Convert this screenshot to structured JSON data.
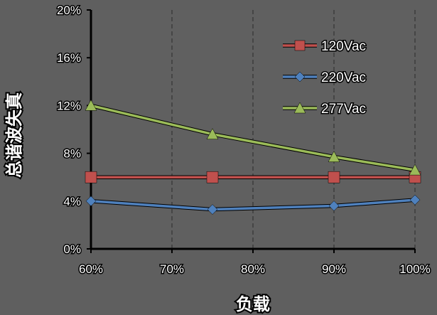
{
  "chart_data": {
    "type": "line",
    "title": "",
    "xlabel": "负载",
    "ylabel": "总谐波失真",
    "x": [
      60,
      75,
      90,
      100
    ],
    "xlim": [
      60,
      100
    ],
    "x_ticks": [
      60,
      70,
      80,
      90,
      100
    ],
    "x_tick_labels": [
      "60%",
      "70%",
      "80%",
      "90%",
      "100%"
    ],
    "ylim": [
      0,
      20
    ],
    "y_ticks": [
      0,
      4,
      8,
      12,
      16,
      20
    ],
    "y_tick_labels": [
      "0%",
      "4%",
      "8%",
      "12%",
      "16%",
      "20%"
    ],
    "grid": {
      "vertical": true,
      "horizontal": false
    },
    "legend_position": "top-right",
    "series": [
      {
        "name": "120Vac",
        "values": [
          6.0,
          6.0,
          6.0,
          6.0
        ],
        "color": "#c0504d",
        "marker": "square"
      },
      {
        "name": "220Vac",
        "values": [
          4.0,
          3.3,
          3.6,
          4.1
        ],
        "color": "#4f81bd",
        "marker": "diamond"
      },
      {
        "name": "277Vac",
        "values": [
          12.0,
          9.6,
          7.7,
          6.6
        ],
        "color": "#9bbb59",
        "marker": "triangle"
      }
    ]
  }
}
